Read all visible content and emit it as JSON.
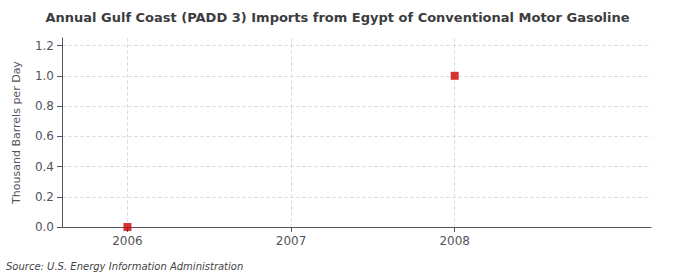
{
  "chart_data": {
    "type": "scatter",
    "title": "Annual Gulf Coast (PADD 3) Imports from Egypt of Conventional Motor Gasoline",
    "y_label": "Thousand Barrels per Day",
    "annotations": [
      "Source: U.S. Energy Information Administration"
    ],
    "x": [
      2006,
      2008
    ],
    "values": [
      0.0,
      1.0
    ],
    "color": "#cc0000",
    "marker": "square",
    "xlim": [
      2005.6,
      2009.2
    ],
    "xticks": [
      2006,
      2007,
      2008
    ],
    "ylim": [
      0.0,
      1.25
    ],
    "yticks": [
      {
        "value": 0.0,
        "label": "0.0"
      },
      0.2,
      0.4,
      0.6,
      0.8,
      {
        "value": 1.0,
        "label": "1.0"
      },
      1.2
    ],
    "grid": true
  }
}
